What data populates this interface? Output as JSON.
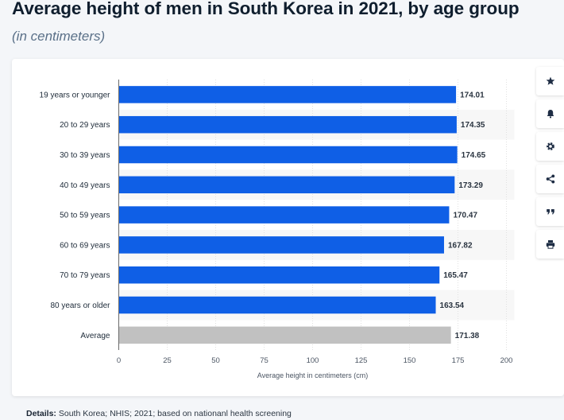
{
  "title": "Average height of men in South Korea in 2021, by age group",
  "subtitle": "(in centimeters)",
  "details": {
    "label": "Details:",
    "text": "South Korea; NHIS; 2021; based on nationanl health screening"
  },
  "toolbar": {
    "items": [
      {
        "name": "star",
        "icon": "star-icon"
      },
      {
        "name": "bell",
        "icon": "bell-icon"
      },
      {
        "name": "settings",
        "icon": "gear-icon"
      },
      {
        "name": "share",
        "icon": "share-icon"
      },
      {
        "name": "cite",
        "icon": "quote-icon"
      },
      {
        "name": "print",
        "icon": "print-icon"
      }
    ]
  },
  "colors": {
    "bar": "#0f5fe6",
    "average_bar": "#c1c1c1",
    "band": "#f7f7f7",
    "grid": "#e1e1e1",
    "axis": "#6b6b6b",
    "icon": "#1e2d44"
  },
  "chart_data": {
    "type": "bar",
    "orientation": "horizontal",
    "categories": [
      "19 years or younger",
      "20 to 29 years",
      "30 to 39 years",
      "40 to 49 years",
      "50 to 59 years",
      "60 to 69 years",
      "70 to 79 years",
      "80 years or older",
      "Average"
    ],
    "values": [
      174.01,
      174.35,
      174.65,
      173.29,
      170.47,
      167.82,
      165.47,
      163.54,
      171.38
    ],
    "value_labels": [
      "174.01",
      "174.35",
      "174.65",
      "173.29",
      "170.47",
      "167.82",
      "165.47",
      "163.54",
      "171.38"
    ],
    "highlight_category": "Average",
    "xlabel": "Average height in centimeters (cm)",
    "ylabel": "",
    "xlim": [
      0,
      200
    ],
    "xticks": [
      0,
      25,
      50,
      75,
      100,
      125,
      150,
      175,
      200
    ],
    "grid": true,
    "legend": "none"
  }
}
